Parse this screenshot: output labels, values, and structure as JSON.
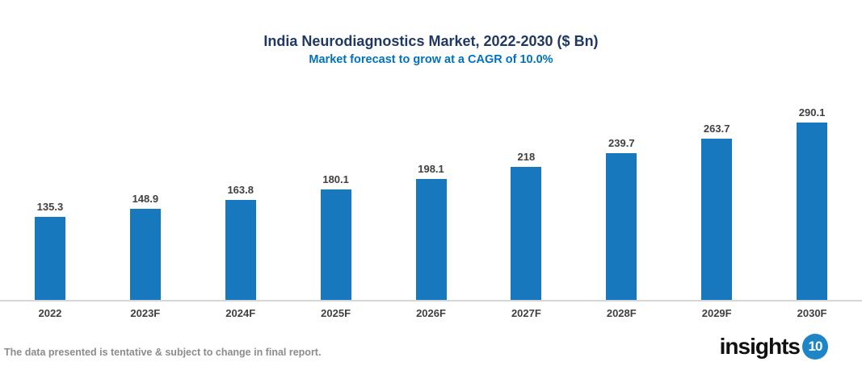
{
  "chart_data": {
    "type": "bar",
    "title": "India Neurodiagnostics Market, 2022-2030 ($ Bn)",
    "subtitle": "Market forecast to grow at a CAGR of 10.0%",
    "categories": [
      "2022",
      "2023F",
      "2024F",
      "2025F",
      "2026F",
      "2027F",
      "2028F",
      "2029F",
      "2030F"
    ],
    "values": [
      135.3,
      148.9,
      163.8,
      180.1,
      198.1,
      218,
      239.7,
      263.7,
      290.1
    ],
    "labels": [
      "135.3",
      "148.9",
      "163.8",
      "180.1",
      "198.1",
      "218",
      "239.7",
      "263.7",
      "290.1"
    ],
    "xlabel": "",
    "ylabel": "",
    "ylim": [
      0,
      300
    ],
    "grid": false,
    "legend": false,
    "colors": {
      "bar": "#1878BE",
      "title": "#1F3864",
      "subtitle": "#0070C0",
      "value_label": "#404040",
      "x_label": "#404040",
      "axis_line": "#D6D6D6"
    }
  },
  "footer": {
    "disclaimer": "The data presented is tentative & subject to change in final report.",
    "disclaimer_color": "#8C8C8C",
    "logo_text": "insights",
    "logo_number": "10",
    "logo_circle_color": "#1E86C7"
  }
}
